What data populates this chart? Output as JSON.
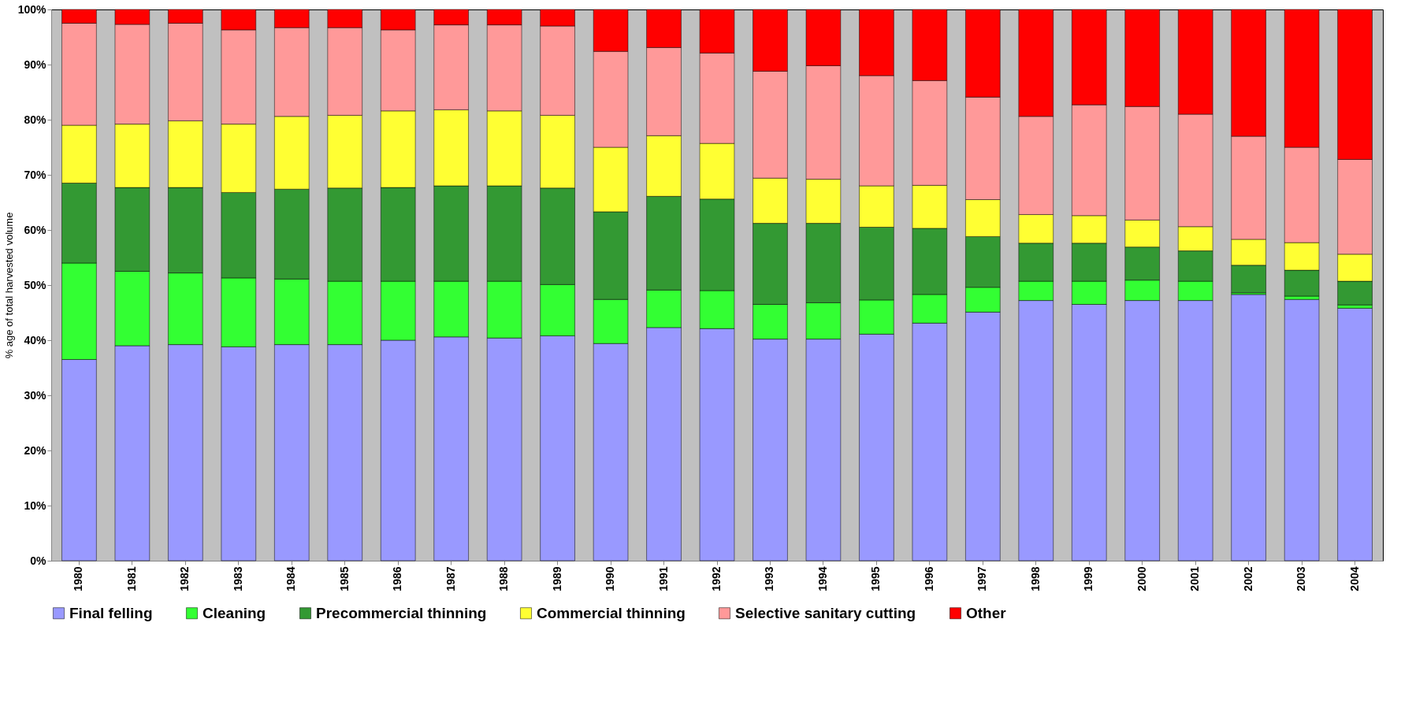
{
  "chart_data": {
    "type": "bar",
    "stacked": true,
    "ylabel": "% age of total harvested volume",
    "ylim": [
      0,
      100
    ],
    "yticks": [
      {
        "value": 0,
        "label": "0%"
      },
      {
        "value": 10,
        "label": "10%"
      },
      {
        "value": 20,
        "label": "20%"
      },
      {
        "value": 30,
        "label": "30%"
      },
      {
        "value": 40,
        "label": "40%"
      },
      {
        "value": 50,
        "label": "50%"
      },
      {
        "value": 60,
        "label": "60%"
      },
      {
        "value": 70,
        "label": "70%"
      },
      {
        "value": 80,
        "label": "80%"
      },
      {
        "value": 90,
        "label": "90%"
      },
      {
        "value": 100,
        "label": "100%"
      }
    ],
    "categories": [
      "1980",
      "1981",
      "1982",
      "1983",
      "1984",
      "1985",
      "1986",
      "1987",
      "1988",
      "1989",
      "1990",
      "1991",
      "1992",
      "1993",
      "1994",
      "1995",
      "1996",
      "1997",
      "1998",
      "1999",
      "2000",
      "2001",
      "2002",
      "2003",
      "2004"
    ],
    "legend": "bottom",
    "grid": false,
    "series": [
      {
        "name": "Final felling",
        "color": "#9999ff",
        "values": [
          36.5,
          39,
          39.2,
          38.8,
          39.2,
          39.2,
          40,
          40.6,
          40.4,
          40.8,
          39.4,
          42.3,
          42.1,
          40.2,
          40.2,
          41.1,
          43.1,
          45.1,
          47.2,
          46.5,
          47.2,
          47.2,
          48.3,
          47.4,
          45.8
        ]
      },
      {
        "name": "Cleaning",
        "color": "#33ff33",
        "values": [
          17.5,
          13.5,
          13,
          12.5,
          11.9,
          11.5,
          10.7,
          10.1,
          10.3,
          9.3,
          8,
          6.8,
          6.9,
          6.3,
          6.6,
          6.2,
          5.2,
          4.5,
          3.5,
          4.2,
          3.7,
          3.5,
          0.3,
          0.6,
          0.6
        ]
      },
      {
        "name": "Precommercial thinning",
        "color": "#339933",
        "values": [
          14.5,
          15.2,
          15.5,
          15.5,
          16.3,
          16.9,
          17,
          17.3,
          17.3,
          17.5,
          15.9,
          17,
          16.6,
          14.7,
          14.4,
          13.2,
          12,
          9.2,
          6.9,
          6.9,
          6,
          5.5,
          5,
          4.7,
          4.3
        ]
      },
      {
        "name": "Commercial thinning",
        "color": "#ffff33",
        "values": [
          10.5,
          11.5,
          12.1,
          12.4,
          13.2,
          13.2,
          13.9,
          13.8,
          13.6,
          13.2,
          11.7,
          11,
          10.1,
          8.2,
          8,
          7.5,
          7.8,
          6.7,
          5.2,
          5,
          4.9,
          4.4,
          4.7,
          5,
          4.9
        ]
      },
      {
        "name": "Selective sanitary cutting",
        "color": "#ff9999",
        "values": [
          18.5,
          18.1,
          17.7,
          17.1,
          16.1,
          15.9,
          14.7,
          15.4,
          15.6,
          16.2,
          17.4,
          16,
          16.4,
          19.4,
          20.6,
          20,
          19,
          18.6,
          17.8,
          20.1,
          20.6,
          20.4,
          18.7,
          17.3,
          17.2
        ]
      },
      {
        "name": "Other",
        "color": "#ff0000",
        "values": [
          2.5,
          2.7,
          2.5,
          3.7,
          3.3,
          3.3,
          3.7,
          2.8,
          2.8,
          3,
          7.6,
          6.9,
          7.9,
          11.2,
          10.2,
          12,
          12.9,
          15.9,
          19.4,
          17.3,
          17.6,
          19,
          23,
          25,
          27.2
        ]
      }
    ]
  }
}
